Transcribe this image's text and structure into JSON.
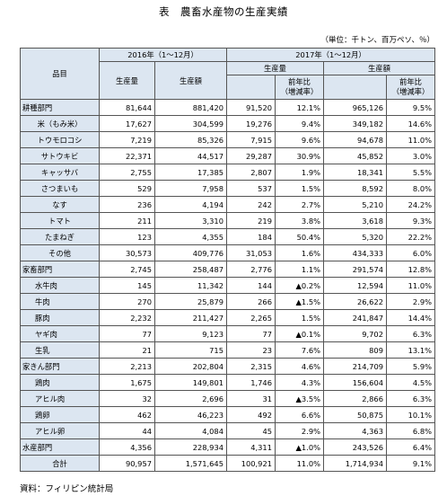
{
  "title": "表　農畜水産物の生産実績",
  "unit_note": "（単位：千トン、百万ペソ、％）",
  "source": "資料：フィリピン統計局",
  "header": {
    "item": "品目",
    "period_2016": "2016年（1〜12月）",
    "period_2017": "2017年（1〜12月）",
    "prod_volume": "生産量",
    "prod_value": "生産額",
    "yoy": "前年比（増減率）"
  },
  "rows": [
    {
      "name": "耕種部門",
      "v16": "81,644",
      "a16": "881,420",
      "v17": "91,520",
      "c1": "12.1%",
      "a17": "965,126",
      "c2": "9.5%",
      "level": "cat"
    },
    {
      "name": "米（もみ米）",
      "v16": "17,627",
      "a16": "304,599",
      "v17": "19,276",
      "c1": "9.4%",
      "a17": "349,182",
      "c2": "14.6%",
      "level": "ctr"
    },
    {
      "name": "トウモロコシ",
      "v16": "7,219",
      "a16": "85,326",
      "v17": "7,915",
      "c1": "9.6%",
      "a17": "94,678",
      "c2": "11.0%",
      "level": "ctr"
    },
    {
      "name": "サトウキビ",
      "v16": "22,371",
      "a16": "44,517",
      "v17": "29,287",
      "c1": "30.9%",
      "a17": "45,852",
      "c2": "3.0%",
      "level": "ctr"
    },
    {
      "name": "キャッサバ",
      "v16": "2,755",
      "a16": "17,385",
      "v17": "2,807",
      "c1": "1.9%",
      "a17": "18,341",
      "c2": "5.5%",
      "level": "ctr"
    },
    {
      "name": "さつまいも",
      "v16": "529",
      "a16": "7,958",
      "v17": "537",
      "c1": "1.5%",
      "a17": "8,592",
      "c2": "8.0%",
      "level": "ctr"
    },
    {
      "name": "なす",
      "v16": "236",
      "a16": "4,194",
      "v17": "242",
      "c1": "2.7%",
      "a17": "5,210",
      "c2": "24.2%",
      "level": "ctr"
    },
    {
      "name": "トマト",
      "v16": "211",
      "a16": "3,310",
      "v17": "219",
      "c1": "3.8%",
      "a17": "3,618",
      "c2": "9.3%",
      "level": "ctr"
    },
    {
      "name": "たまねぎ",
      "v16": "123",
      "a16": "4,355",
      "v17": "184",
      "c1": "50.4%",
      "a17": "5,320",
      "c2": "22.2%",
      "level": "ctr"
    },
    {
      "name": "その他",
      "v16": "30,573",
      "a16": "409,776",
      "v17": "31,053",
      "c1": "1.6%",
      "a17": "434,333",
      "c2": "6.0%",
      "level": "ctr"
    },
    {
      "name": "家畜部門",
      "v16": "2,745",
      "a16": "258,487",
      "v17": "2,776",
      "c1": "1.1%",
      "a17": "291,574",
      "c2": "12.8%",
      "level": "cat"
    },
    {
      "name": "水牛肉",
      "v16": "145",
      "a16": "11,342",
      "v17": "144",
      "c1": "▲0.2%",
      "a17": "12,594",
      "c2": "11.0%",
      "level": "sub"
    },
    {
      "name": "牛肉",
      "v16": "270",
      "a16": "25,879",
      "v17": "266",
      "c1": "▲1.5%",
      "a17": "26,622",
      "c2": "2.9%",
      "level": "sub"
    },
    {
      "name": "豚肉",
      "v16": "2,232",
      "a16": "211,427",
      "v17": "2,265",
      "c1": "1.5%",
      "a17": "241,847",
      "c2": "14.4%",
      "level": "sub"
    },
    {
      "name": "ヤギ肉",
      "v16": "77",
      "a16": "9,123",
      "v17": "77",
      "c1": "▲0.1%",
      "a17": "9,702",
      "c2": "6.3%",
      "level": "sub"
    },
    {
      "name": "生乳",
      "v16": "21",
      "a16": "715",
      "v17": "23",
      "c1": "7.6%",
      "a17": "809",
      "c2": "13.1%",
      "level": "sub"
    },
    {
      "name": "家きん部門",
      "v16": "2,213",
      "a16": "202,804",
      "v17": "2,315",
      "c1": "4.6%",
      "a17": "214,709",
      "c2": "5.9%",
      "level": "cat"
    },
    {
      "name": "鶏肉",
      "v16": "1,675",
      "a16": "149,801",
      "v17": "1,746",
      "c1": "4.3%",
      "a17": "156,604",
      "c2": "4.5%",
      "level": "sub"
    },
    {
      "name": "アヒル肉",
      "v16": "32",
      "a16": "2,696",
      "v17": "31",
      "c1": "▲3.5%",
      "a17": "2,866",
      "c2": "6.3%",
      "level": "sub"
    },
    {
      "name": "鶏卵",
      "v16": "462",
      "a16": "46,223",
      "v17": "492",
      "c1": "6.6%",
      "a17": "50,875",
      "c2": "10.1%",
      "level": "sub"
    },
    {
      "name": "アヒル卵",
      "v16": "44",
      "a16": "4,084",
      "v17": "45",
      "c1": "2.9%",
      "a17": "4,363",
      "c2": "6.8%",
      "level": "sub"
    },
    {
      "name": "水産部門",
      "v16": "4,356",
      "a16": "228,934",
      "v17": "4,311",
      "c1": "▲1.0%",
      "a17": "243,526",
      "c2": "6.4%",
      "level": "cat"
    },
    {
      "name": "合計",
      "v16": "90,957",
      "a16": "1,571,645",
      "v17": "100,921",
      "c1": "11.0%",
      "a17": "1,714,934",
      "c2": "9.1%",
      "level": "ctr"
    }
  ]
}
